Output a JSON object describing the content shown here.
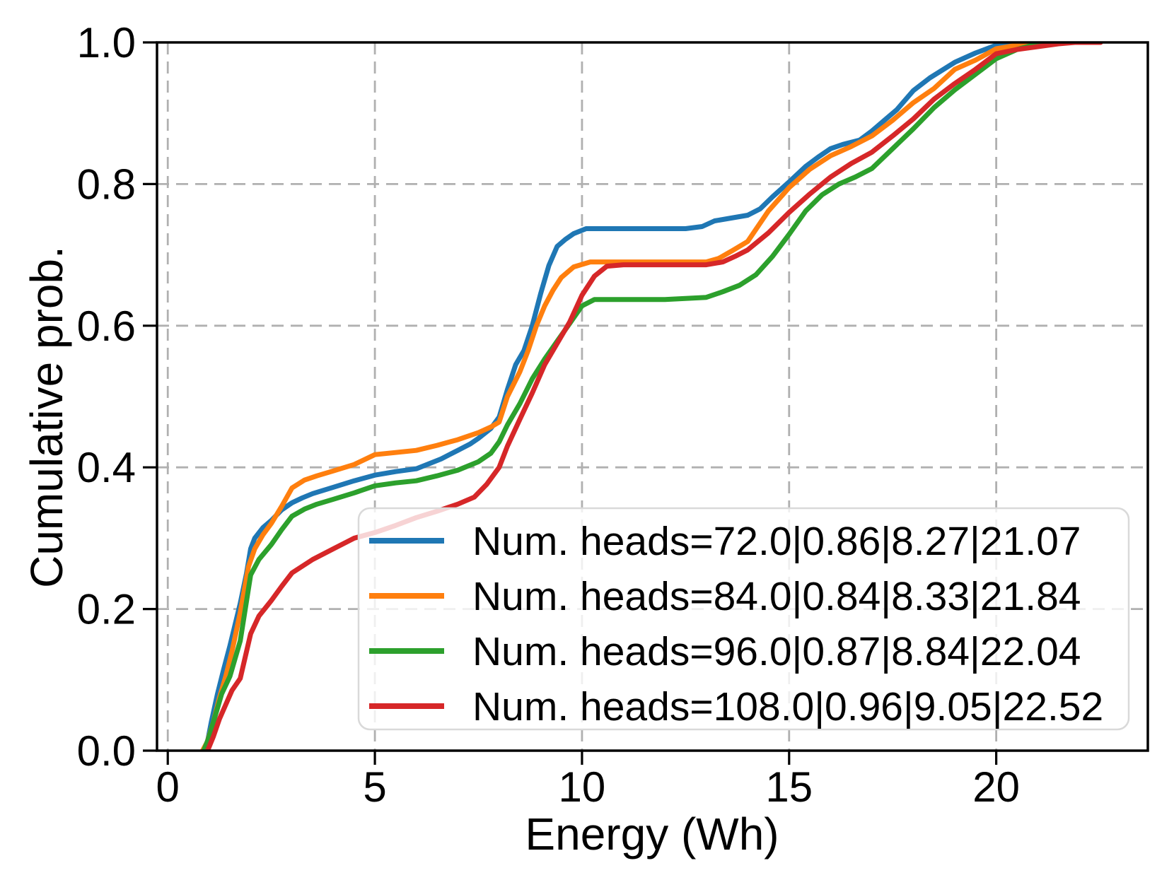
{
  "chart_data": {
    "type": "line",
    "title": "",
    "xlabel": "Energy (Wh)",
    "ylabel": "Cumulative prob.",
    "xlim": [
      -0.26,
      23.66
    ],
    "ylim": [
      0,
      1
    ],
    "xticks": [
      0,
      5,
      10,
      15,
      20
    ],
    "xtick_labels": [
      "0",
      "5",
      "10",
      "15",
      "20"
    ],
    "yticks": [
      0.0,
      0.2,
      0.4,
      0.6,
      0.8,
      1.0
    ],
    "ytick_labels": [
      "0.0",
      "0.2",
      "0.4",
      "0.6",
      "0.8",
      "1.0"
    ],
    "grid": true,
    "grid_color": "#b0b0b0",
    "legend_position": "inside lower-right of plot",
    "series": [
      {
        "name": "Num. heads=72.0|0.86|8.27|21.07",
        "color": "#1f77b4",
        "points": [
          [
            0.86,
            0
          ],
          [
            0.95,
            0.01
          ],
          [
            1.05,
            0.04
          ],
          [
            1.2,
            0.08
          ],
          [
            1.35,
            0.115
          ],
          [
            1.5,
            0.148
          ],
          [
            1.75,
            0.208
          ],
          [
            1.9,
            0.25
          ],
          [
            2.0,
            0.285
          ],
          [
            2.1,
            0.3
          ],
          [
            2.3,
            0.315
          ],
          [
            2.5,
            0.325
          ],
          [
            2.75,
            0.34
          ],
          [
            3.0,
            0.35
          ],
          [
            3.25,
            0.357
          ],
          [
            3.5,
            0.363
          ],
          [
            4.0,
            0.372
          ],
          [
            4.5,
            0.381
          ],
          [
            5.0,
            0.389
          ],
          [
            5.5,
            0.394
          ],
          [
            6.0,
            0.398
          ],
          [
            6.3,
            0.405
          ],
          [
            6.6,
            0.412
          ],
          [
            7.0,
            0.424
          ],
          [
            7.3,
            0.433
          ],
          [
            7.5,
            0.441
          ],
          [
            7.8,
            0.455
          ],
          [
            8.0,
            0.471
          ],
          [
            8.2,
            0.51
          ],
          [
            8.4,
            0.545
          ],
          [
            8.6,
            0.565
          ],
          [
            8.8,
            0.6
          ],
          [
            9.0,
            0.645
          ],
          [
            9.2,
            0.685
          ],
          [
            9.4,
            0.712
          ],
          [
            9.6,
            0.722
          ],
          [
            9.8,
            0.73
          ],
          [
            10.1,
            0.737
          ],
          [
            10.5,
            0.737
          ],
          [
            11.5,
            0.737
          ],
          [
            12.5,
            0.737
          ],
          [
            12.9,
            0.74
          ],
          [
            13.2,
            0.748
          ],
          [
            13.6,
            0.752
          ],
          [
            14.0,
            0.756
          ],
          [
            14.3,
            0.765
          ],
          [
            14.6,
            0.782
          ],
          [
            15.0,
            0.803
          ],
          [
            15.4,
            0.825
          ],
          [
            15.7,
            0.838
          ],
          [
            16.0,
            0.85
          ],
          [
            16.3,
            0.856
          ],
          [
            16.7,
            0.862
          ],
          [
            17.0,
            0.875
          ],
          [
            17.3,
            0.89
          ],
          [
            17.6,
            0.905
          ],
          [
            18.0,
            0.932
          ],
          [
            18.4,
            0.95
          ],
          [
            19.0,
            0.972
          ],
          [
            19.5,
            0.985
          ],
          [
            20.0,
            0.996
          ],
          [
            20.35,
            1.0
          ],
          [
            21.07,
            1.0
          ]
        ]
      },
      {
        "name": "Num. heads=84.0|0.84|8.33|21.84",
        "color": "#ff7f0e",
        "points": [
          [
            0.84,
            0
          ],
          [
            0.95,
            0.012
          ],
          [
            1.1,
            0.04
          ],
          [
            1.25,
            0.075
          ],
          [
            1.4,
            0.105
          ],
          [
            1.55,
            0.14
          ],
          [
            1.75,
            0.195
          ],
          [
            1.95,
            0.26
          ],
          [
            2.1,
            0.285
          ],
          [
            2.3,
            0.305
          ],
          [
            2.5,
            0.321
          ],
          [
            2.75,
            0.345
          ],
          [
            3.0,
            0.371
          ],
          [
            3.3,
            0.382
          ],
          [
            3.6,
            0.388
          ],
          [
            4.0,
            0.395
          ],
          [
            4.5,
            0.404
          ],
          [
            5.0,
            0.418
          ],
          [
            5.5,
            0.421
          ],
          [
            6.0,
            0.424
          ],
          [
            6.5,
            0.431
          ],
          [
            7.0,
            0.439
          ],
          [
            7.5,
            0.449
          ],
          [
            7.8,
            0.457
          ],
          [
            8.0,
            0.464
          ],
          [
            8.2,
            0.5
          ],
          [
            8.5,
            0.535
          ],
          [
            8.7,
            0.565
          ],
          [
            8.9,
            0.6
          ],
          [
            9.1,
            0.628
          ],
          [
            9.3,
            0.65
          ],
          [
            9.5,
            0.668
          ],
          [
            9.8,
            0.683
          ],
          [
            10.2,
            0.69
          ],
          [
            11.0,
            0.69
          ],
          [
            12.0,
            0.69
          ],
          [
            13.0,
            0.69
          ],
          [
            13.3,
            0.695
          ],
          [
            13.6,
            0.705
          ],
          [
            14.0,
            0.719
          ],
          [
            14.5,
            0.762
          ],
          [
            15.0,
            0.795
          ],
          [
            15.5,
            0.821
          ],
          [
            16.0,
            0.84
          ],
          [
            16.5,
            0.853
          ],
          [
            17.0,
            0.868
          ],
          [
            17.5,
            0.89
          ],
          [
            18.0,
            0.915
          ],
          [
            18.5,
            0.935
          ],
          [
            19.0,
            0.962
          ],
          [
            19.5,
            0.975
          ],
          [
            20.0,
            0.991
          ],
          [
            20.5,
            0.996
          ],
          [
            21.0,
            1.0
          ],
          [
            21.84,
            1.0
          ]
        ]
      },
      {
        "name": "Num. heads=96.0|0.87|8.84|22.04",
        "color": "#2ca02c",
        "points": [
          [
            0.87,
            0
          ],
          [
            1.0,
            0.02
          ],
          [
            1.15,
            0.05
          ],
          [
            1.3,
            0.08
          ],
          [
            1.5,
            0.105
          ],
          [
            1.75,
            0.155
          ],
          [
            2.0,
            0.248
          ],
          [
            2.2,
            0.27
          ],
          [
            2.5,
            0.291
          ],
          [
            2.75,
            0.312
          ],
          [
            3.0,
            0.331
          ],
          [
            3.3,
            0.341
          ],
          [
            3.6,
            0.348
          ],
          [
            4.0,
            0.355
          ],
          [
            4.5,
            0.364
          ],
          [
            5.0,
            0.374
          ],
          [
            5.5,
            0.378
          ],
          [
            6.0,
            0.381
          ],
          [
            6.5,
            0.388
          ],
          [
            7.0,
            0.396
          ],
          [
            7.5,
            0.408
          ],
          [
            7.8,
            0.42
          ],
          [
            8.0,
            0.436
          ],
          [
            8.2,
            0.46
          ],
          [
            8.5,
            0.49
          ],
          [
            8.8,
            0.525
          ],
          [
            9.1,
            0.553
          ],
          [
            9.4,
            0.578
          ],
          [
            9.7,
            0.603
          ],
          [
            10.0,
            0.628
          ],
          [
            10.3,
            0.637
          ],
          [
            11.0,
            0.637
          ],
          [
            12.0,
            0.637
          ],
          [
            13.0,
            0.64
          ],
          [
            13.4,
            0.648
          ],
          [
            13.8,
            0.657
          ],
          [
            14.2,
            0.672
          ],
          [
            14.6,
            0.698
          ],
          [
            15.0,
            0.729
          ],
          [
            15.4,
            0.762
          ],
          [
            15.8,
            0.785
          ],
          [
            16.2,
            0.8
          ],
          [
            16.6,
            0.81
          ],
          [
            17.0,
            0.822
          ],
          [
            17.5,
            0.85
          ],
          [
            18.0,
            0.878
          ],
          [
            18.5,
            0.908
          ],
          [
            19.0,
            0.933
          ],
          [
            19.5,
            0.955
          ],
          [
            20.0,
            0.977
          ],
          [
            20.5,
            0.99
          ],
          [
            21.0,
            0.998
          ],
          [
            21.3,
            1.0
          ],
          [
            22.04,
            1.0
          ]
        ]
      },
      {
        "name": "Num. heads=108.0|0.96|9.05|22.52",
        "color": "#d62728",
        "points": [
          [
            0.96,
            0
          ],
          [
            1.1,
            0.02
          ],
          [
            1.25,
            0.045
          ],
          [
            1.4,
            0.065
          ],
          [
            1.55,
            0.085
          ],
          [
            1.75,
            0.102
          ],
          [
            2.0,
            0.165
          ],
          [
            2.2,
            0.19
          ],
          [
            2.5,
            0.212
          ],
          [
            2.75,
            0.232
          ],
          [
            3.0,
            0.251
          ],
          [
            3.5,
            0.27
          ],
          [
            4.0,
            0.285
          ],
          [
            4.5,
            0.3
          ],
          [
            5.0,
            0.308
          ],
          [
            5.5,
            0.318
          ],
          [
            6.0,
            0.329
          ],
          [
            6.5,
            0.338
          ],
          [
            7.0,
            0.348
          ],
          [
            7.4,
            0.358
          ],
          [
            7.7,
            0.376
          ],
          [
            8.0,
            0.4
          ],
          [
            8.2,
            0.43
          ],
          [
            8.5,
            0.468
          ],
          [
            8.8,
            0.505
          ],
          [
            9.1,
            0.545
          ],
          [
            9.4,
            0.575
          ],
          [
            9.7,
            0.605
          ],
          [
            10.0,
            0.643
          ],
          [
            10.3,
            0.67
          ],
          [
            10.6,
            0.684
          ],
          [
            11.0,
            0.686
          ],
          [
            12.0,
            0.686
          ],
          [
            13.0,
            0.686
          ],
          [
            13.4,
            0.69
          ],
          [
            13.7,
            0.698
          ],
          [
            14.0,
            0.707
          ],
          [
            14.5,
            0.731
          ],
          [
            15.0,
            0.76
          ],
          [
            15.5,
            0.786
          ],
          [
            16.0,
            0.81
          ],
          [
            16.5,
            0.829
          ],
          [
            17.0,
            0.845
          ],
          [
            17.5,
            0.868
          ],
          [
            18.0,
            0.892
          ],
          [
            18.5,
            0.92
          ],
          [
            19.0,
            0.942
          ],
          [
            19.5,
            0.962
          ],
          [
            20.0,
            0.984
          ],
          [
            20.5,
            0.99
          ],
          [
            21.0,
            0.994
          ],
          [
            21.5,
            0.998
          ],
          [
            21.9,
            1.0
          ],
          [
            22.52,
            1.0
          ]
        ]
      }
    ]
  },
  "legend": {
    "entries": [
      "Num. heads=72.0|0.86|8.27|21.07",
      "Num. heads=84.0|0.84|8.33|21.84",
      "Num. heads=96.0|0.87|8.84|22.04",
      "Num. heads=108.0|0.96|9.05|22.52"
    ],
    "colors": [
      "#1f77b4",
      "#ff7f0e",
      "#2ca02c",
      "#d62728"
    ]
  }
}
